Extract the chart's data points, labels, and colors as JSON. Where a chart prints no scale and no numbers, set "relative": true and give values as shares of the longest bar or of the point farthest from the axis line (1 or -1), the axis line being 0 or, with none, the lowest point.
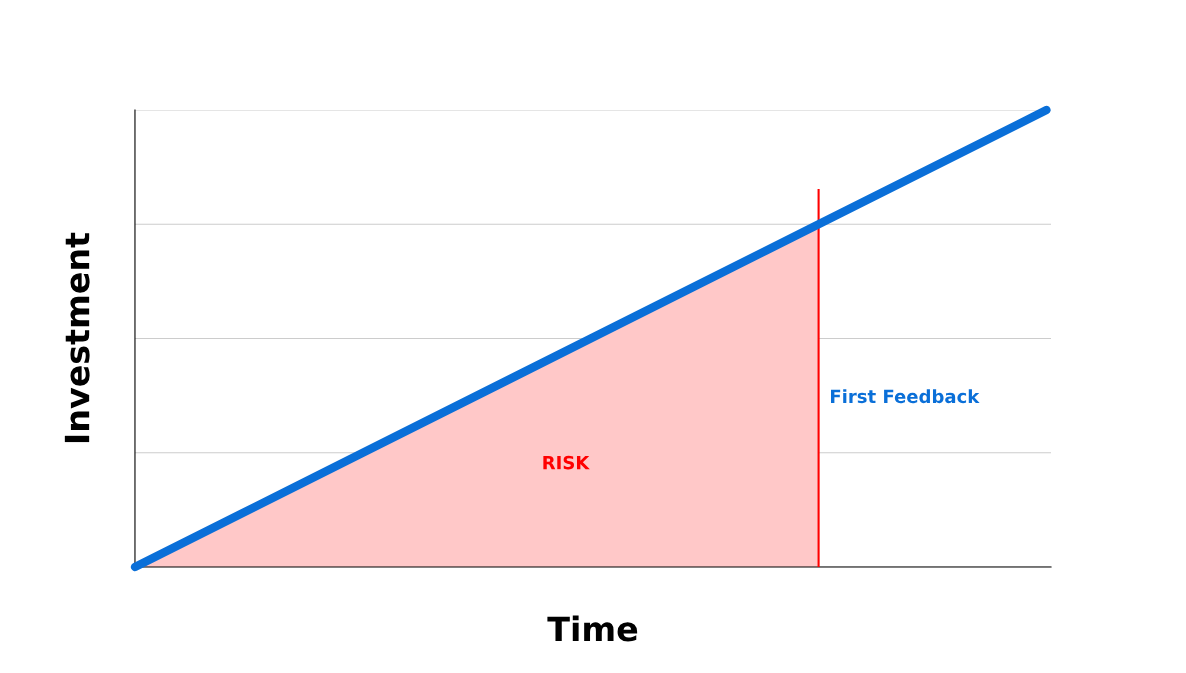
{
  "chart_data": {
    "type": "line",
    "relative": true,
    "xlabel": "Time",
    "ylabel": "Investment",
    "categories": [
      null,
      null,
      null,
      null,
      null
    ],
    "series": [
      {
        "type": "area",
        "color": "#ffc8c8",
        "values": [
          0,
          0.25,
          0.5,
          0.75,
          null
        ]
      },
      {
        "color": "#0a6fd8",
        "values": [
          0,
          0.25,
          0.5,
          0.75,
          1
        ]
      }
    ],
    "annotations": [
      "RISK",
      "First Feedback"
    ],
    "grid": "y",
    "legend": false,
    "marker": "none",
    "line_style": "solid"
  }
}
